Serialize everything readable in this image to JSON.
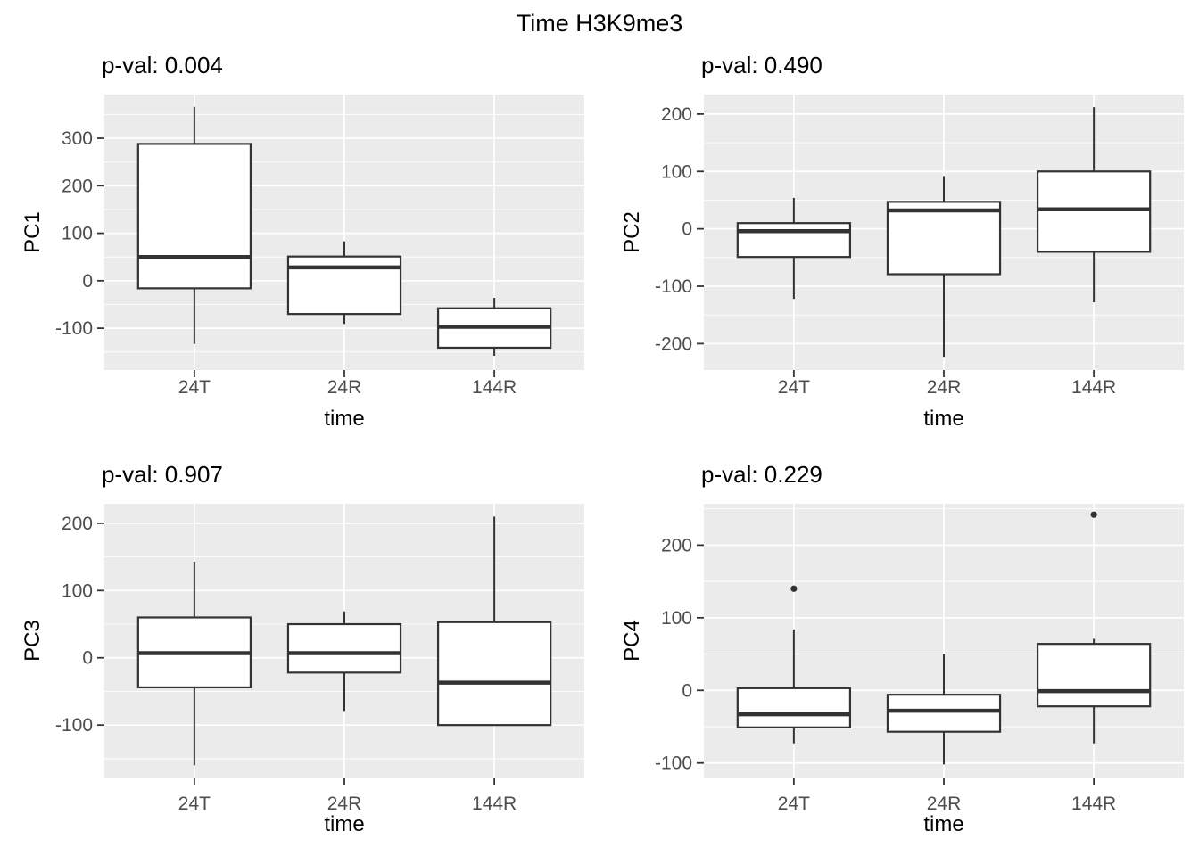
{
  "title": "Time H3K9me3",
  "palette": {
    "panel_bg": "#EBEBEB",
    "grid": "#FFFFFF",
    "box_stroke": "#333333",
    "box_fill": "#FFFFFF",
    "axis_text": "#4D4D4D",
    "title_text": "#000000"
  },
  "chart_data": [
    {
      "type": "boxplot",
      "name": "PC1",
      "subtitle": "p-val: 0.004",
      "xlabel": "time",
      "ylabel": "PC1",
      "categories": [
        "24T",
        "24R",
        "144R"
      ],
      "yticks": [
        -100,
        0,
        100,
        200,
        300
      ],
      "ylim": [
        -188,
        392
      ],
      "grid": true,
      "legend": "none",
      "boxes": [
        {
          "category": "24T",
          "whisker_low": -133,
          "q1": -16,
          "median": 50,
          "q3": 288,
          "whisker_high": 366,
          "outliers": []
        },
        {
          "category": "24R",
          "whisker_low": -91,
          "q1": -70,
          "median": 28,
          "q3": 51,
          "whisker_high": 83,
          "outliers": []
        },
        {
          "category": "144R",
          "whisker_low": -158,
          "q1": -141,
          "median": -97,
          "q3": -58,
          "whisker_high": -36,
          "outliers": []
        }
      ]
    },
    {
      "type": "boxplot",
      "name": "PC2",
      "subtitle": "p-val: 0.490",
      "xlabel": "time",
      "ylabel": "PC2",
      "categories": [
        "24T",
        "24R",
        "144R"
      ],
      "yticks": [
        -200,
        -100,
        0,
        100,
        200
      ],
      "ylim": [
        -246,
        234
      ],
      "grid": true,
      "legend": "none",
      "boxes": [
        {
          "category": "24T",
          "whisker_low": -122,
          "q1": -49,
          "median": -4,
          "q3": 10,
          "whisker_high": 54,
          "outliers": []
        },
        {
          "category": "24R",
          "whisker_low": -223,
          "q1": -79,
          "median": 32,
          "q3": 47,
          "whisker_high": 92,
          "outliers": []
        },
        {
          "category": "144R",
          "whisker_low": -128,
          "q1": -40,
          "median": 34,
          "q3": 100,
          "whisker_high": 212,
          "outliers": []
        }
      ]
    },
    {
      "type": "boxplot",
      "name": "PC3",
      "subtitle": "p-val: 0.907",
      "xlabel": "time",
      "ylabel": "PC3",
      "categories": [
        "24T",
        "24R",
        "144R"
      ],
      "yticks": [
        -100,
        0,
        100,
        200
      ],
      "ylim": [
        -178,
        229
      ],
      "grid": true,
      "legend": "none",
      "boxes": [
        {
          "category": "24T",
          "whisker_low": -160,
          "q1": -44,
          "median": 7,
          "q3": 60,
          "whisker_high": 143,
          "outliers": []
        },
        {
          "category": "24R",
          "whisker_low": -79,
          "q1": -22,
          "median": 7,
          "q3": 50,
          "whisker_high": 69,
          "outliers": []
        },
        {
          "category": "144R",
          "whisker_low": -100,
          "q1": -100,
          "median": -37,
          "q3": 53,
          "whisker_high": 210,
          "outliers": []
        }
      ]
    },
    {
      "type": "boxplot",
      "name": "PC4",
      "subtitle": "p-val: 0.229",
      "xlabel": "time",
      "ylabel": "PC4",
      "categories": [
        "24T",
        "24R",
        "144R"
      ],
      "yticks": [
        -100,
        0,
        100,
        200
      ],
      "ylim": [
        -120,
        257
      ],
      "grid": true,
      "legend": "none",
      "boxes": [
        {
          "category": "24T",
          "whisker_low": -73,
          "q1": -51,
          "median": -33,
          "q3": 3,
          "whisker_high": 84,
          "outliers": [
            140
          ]
        },
        {
          "category": "24R",
          "whisker_low": -102,
          "q1": -57,
          "median": -28,
          "q3": -6,
          "whisker_high": 50,
          "outliers": []
        },
        {
          "category": "144R",
          "whisker_low": -73,
          "q1": -22,
          "median": -1,
          "q3": 64,
          "whisker_high": 71,
          "outliers": [
            242
          ]
        }
      ]
    }
  ]
}
